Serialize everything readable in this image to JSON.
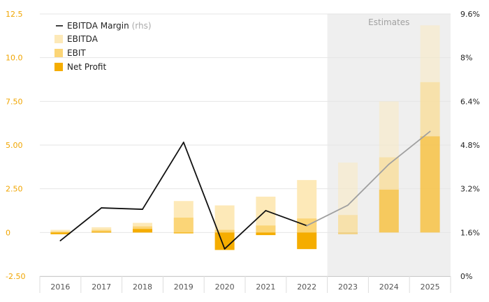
{
  "chart_data": {
    "type": "bar",
    "categories": [
      "2016",
      "2017",
      "2018",
      "2019",
      "2020",
      "2021",
      "2022",
      "2023",
      "2024",
      "2025"
    ],
    "series": [
      {
        "name": "EBITDA",
        "type": "bar",
        "axis": "left",
        "values": [
          0.15,
          0.3,
          0.55,
          1.8,
          1.55,
          2.05,
          3.0,
          4.0,
          7.5,
          11.85
        ]
      },
      {
        "name": "EBIT",
        "type": "bar",
        "axis": "left",
        "values": [
          0.05,
          0.15,
          0.35,
          0.85,
          0.15,
          0.4,
          0.8,
          1.0,
          4.3,
          8.6
        ]
      },
      {
        "name": "Net Profit",
        "type": "bar",
        "axis": "left",
        "values": [
          -0.1,
          0.05,
          0.2,
          -0.05,
          -1.0,
          -0.15,
          -0.95,
          -0.1,
          2.45,
          5.5
        ]
      },
      {
        "name": "EBITDA Margin",
        "type": "line",
        "axis": "right",
        "values": [
          1.3,
          2.5,
          2.45,
          4.9,
          1.0,
          2.4,
          1.85,
          2.6,
          4.1,
          5.3
        ]
      }
    ],
    "estimate_start": "2023",
    "estimates_label": "Estimates",
    "left_axis": {
      "ylim": [
        -2.5,
        12.5
      ],
      "ticks": [
        "-2.50",
        "0",
        "2.50",
        "5.00",
        "7.50",
        "10.0",
        "12.5"
      ],
      "tick_values": [
        -2.5,
        0,
        2.5,
        5,
        7.5,
        10,
        12.5
      ]
    },
    "right_axis": {
      "ylim": [
        0,
        9.6
      ],
      "ticks": [
        "0%",
        "1.6%",
        "3.2%",
        "4.8%",
        "6.4%",
        "8%",
        "9.6%"
      ],
      "tick_values": [
        0,
        1.6,
        3.2,
        4.8,
        6.4,
        8,
        9.6
      ]
    },
    "legend": {
      "placement": "top-left",
      "items": [
        {
          "label": "EBITDA Margin",
          "suffix": "(rhs)",
          "kind": "line"
        },
        {
          "label": "EBITDA",
          "suffix": "",
          "kind": "bar"
        },
        {
          "label": "EBIT",
          "suffix": "",
          "kind": "bar"
        },
        {
          "label": "Net Profit",
          "suffix": "",
          "kind": "bar"
        }
      ]
    },
    "grid": true,
    "colors": {
      "ebitda": "#fde9b8",
      "ebit": "#fbd577",
      "net_profit": "#f5ad00",
      "line": "#111111",
      "line_estimate": "#a0a0a0",
      "estimate_bg": "#efefef",
      "left_tick": "#f0a500"
    }
  }
}
